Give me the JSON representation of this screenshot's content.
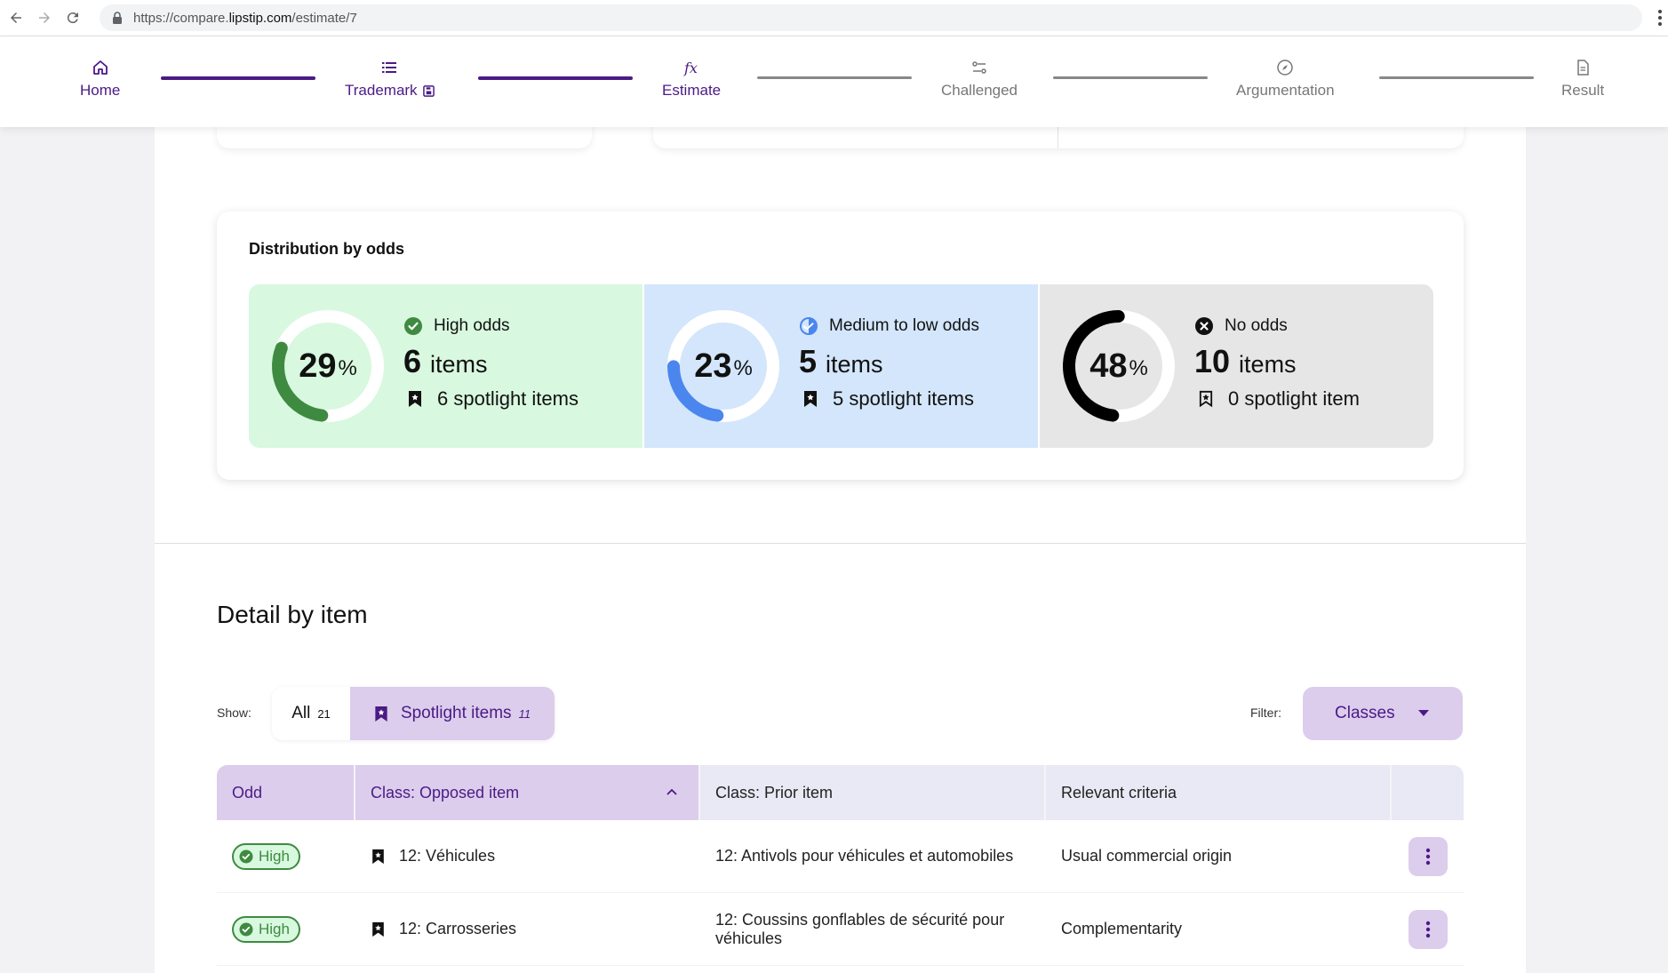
{
  "browser": {
    "url_prefix": "https://compare.",
    "url_host": "lipstip.com",
    "url_path": "/estimate/7"
  },
  "stepper": {
    "steps": [
      {
        "label": "Home",
        "icon": "home-icon",
        "state": "done"
      },
      {
        "label": "Trademark",
        "icon": "list-icon",
        "state": "done"
      },
      {
        "label": "Estimate",
        "icon": "function-icon",
        "state": "current"
      },
      {
        "label": "Challenged",
        "icon": "sliders-icon",
        "state": "todo"
      },
      {
        "label": "Argumentation",
        "icon": "compass-icon",
        "state": "todo"
      },
      {
        "label": "Result",
        "icon": "document-icon",
        "state": "todo"
      }
    ]
  },
  "distribution": {
    "title": "Distribution by odds",
    "panels": [
      {
        "pct": "29",
        "pct_sign": "%",
        "fraction": 0.29,
        "label": "High odds",
        "count": "6",
        "unit": "items",
        "spotlight": "6 spotlight items",
        "color": "#3f8a41",
        "bg": "#d8f8df",
        "status_icon": "check-circle-icon",
        "bookmark_icon": "bookmark-filled-icon"
      },
      {
        "pct": "23",
        "pct_sign": "%",
        "fraction": 0.23,
        "label": "Medium to low odds",
        "count": "5",
        "unit": "items",
        "spotlight": "5 spotlight items",
        "color": "#4b86ee",
        "bg": "#d3e6fb",
        "status_icon": "half-check-circle-icon",
        "bookmark_icon": "bookmark-filled-icon"
      },
      {
        "pct": "48",
        "pct_sign": "%",
        "fraction": 0.48,
        "label": "No odds",
        "count": "10",
        "unit": "items",
        "spotlight": "0 spotlight item",
        "color": "#000000",
        "bg": "#e6e6e6",
        "status_icon": "x-circle-icon",
        "bookmark_icon": "bookmark-outline-icon"
      }
    ]
  },
  "detail": {
    "title": "Detail by item",
    "show_label": "Show:",
    "show_all_label": "All",
    "show_all_count": "21",
    "show_spotlight_label": "Spotlight items",
    "show_spotlight_count": "11",
    "filter_label": "Filter:",
    "filter_button": "Classes"
  },
  "table": {
    "columns": [
      "Odd",
      "Class: Opposed item",
      "Class: Prior item",
      "Relevant criteria"
    ],
    "rows": [
      {
        "odd": "High",
        "opposed": "12: Véhicules",
        "prior": "12: Antivols pour véhicules et automobiles",
        "criteria": "Usual commercial origin"
      },
      {
        "odd": "High",
        "opposed": "12: Carrosseries",
        "prior": "12: Coussins gonflables de sécurité pour véhicules",
        "criteria": "Complementarity"
      }
    ]
  },
  "colors": {
    "brand": "#4b1a86",
    "brand_light": "#dccdec",
    "success": "#3f8a41"
  }
}
